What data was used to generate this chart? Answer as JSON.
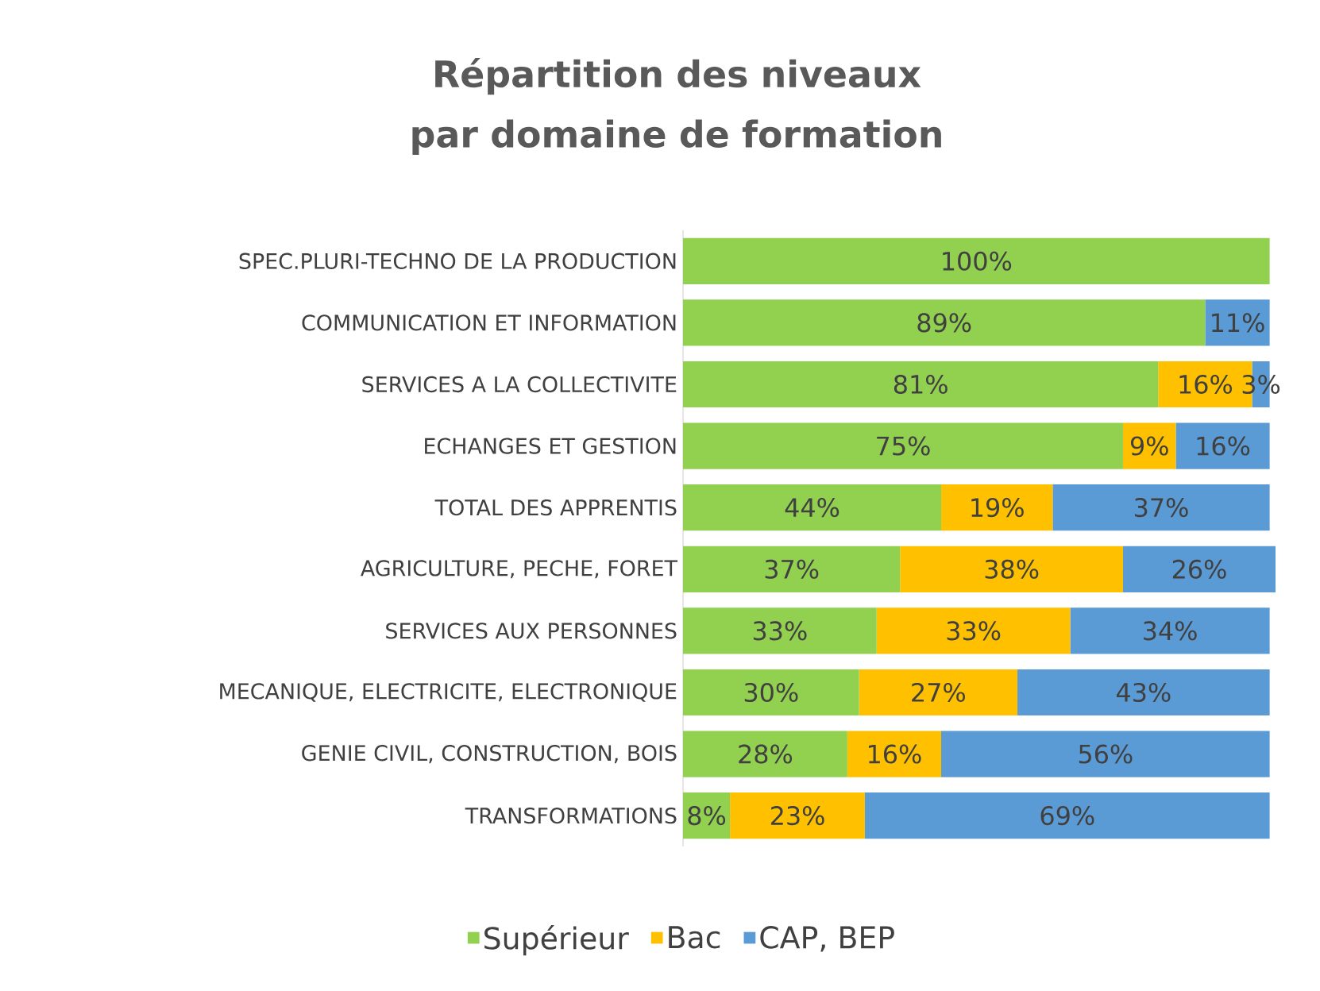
{
  "chart_data": {
    "type": "bar",
    "orientation": "horizontal",
    "stacked": true,
    "title": "Répartition des niveaux par domaine de formation",
    "categories": [
      "SPEC.PLURI-TECHNO DE LA PRODUCTION",
      "COMMUNICATION ET INFORMATION",
      "SERVICES A LA COLLECTIVITE",
      "ECHANGES ET GESTION",
      "TOTAL DES APPRENTIS",
      "AGRICULTURE, PECHE, FORET",
      "SERVICES AUX PERSONNES",
      "MECANIQUE, ELECTRICITE, ELECTRONIQUE",
      "GENIE CIVIL, CONSTRUCTION, BOIS",
      "TRANSFORMATIONS"
    ],
    "series": [
      {
        "name": "Supérieur",
        "color": "#92d050",
        "values": [
          100,
          89,
          81,
          75,
          44,
          37,
          33,
          30,
          28,
          8
        ],
        "value_labels": [
          "100%",
          "89%",
          "81%",
          "75%",
          "44%",
          "37%",
          "33%",
          "30%",
          "28%",
          "8%"
        ]
      },
      {
        "name": "Bac",
        "color": "#ffc000",
        "values": [
          0,
          0,
          16,
          9,
          19,
          38,
          33,
          27,
          16,
          23
        ],
        "value_labels": [
          null,
          null,
          "16%",
          "9%",
          "19%",
          "38%",
          "33%",
          "27%",
          "16%",
          "23%"
        ]
      },
      {
        "name": "CAP, BEP",
        "color": "#5b9bd5",
        "values": [
          0,
          11,
          3,
          16,
          37,
          26,
          34,
          43,
          56,
          69
        ],
        "value_labels": [
          null,
          "11%",
          "3%",
          "16%",
          "37%",
          "26%",
          "34%",
          "43%",
          "56%",
          "69%"
        ]
      }
    ],
    "xlim": [
      0,
      101
    ],
    "tick_labels": "y",
    "legend": "bottom"
  }
}
